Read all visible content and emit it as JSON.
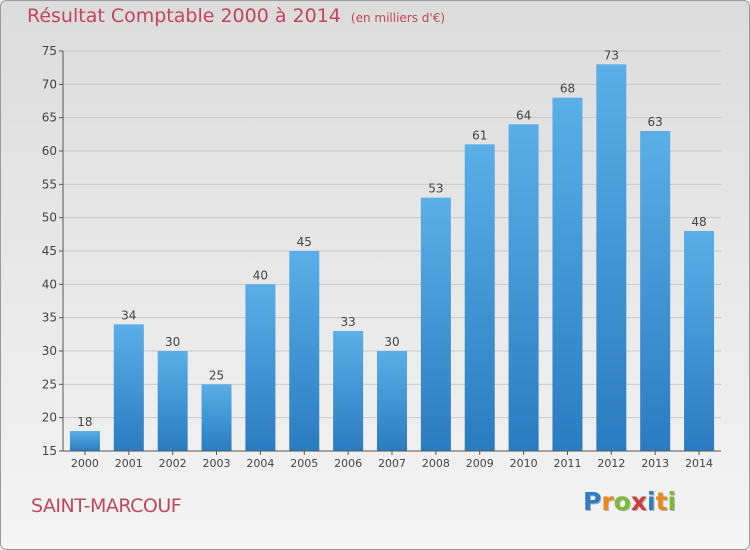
{
  "header": {
    "title": "Résultat Comptable 2000 à 2014",
    "unit": "(en milliers d'€)"
  },
  "footer": {
    "town": "SAINT-MARCOUF",
    "logo_letters": [
      "P",
      "r",
      "o",
      "x",
      "i",
      "t",
      "i"
    ],
    "logo_colors": [
      "#2e7bc6",
      "#e8891b",
      "#7cb93b",
      "#d23b3b",
      "#2e7bc6",
      "#e8891b",
      "#7cb93b"
    ]
  },
  "chart_data": {
    "type": "bar",
    "title": "Résultat Comptable 2000 à 2014",
    "unit_label": "(en milliers d'€)",
    "categories": [
      "2000",
      "2001",
      "2002",
      "2003",
      "2004",
      "2005",
      "2006",
      "2007",
      "2008",
      "2009",
      "2010",
      "2011",
      "2012",
      "2013",
      "2014"
    ],
    "values": [
      18,
      34,
      30,
      25,
      40,
      45,
      33,
      30,
      53,
      61,
      64,
      68,
      73,
      63,
      48
    ],
    "ylim": [
      15,
      75
    ],
    "yticks": [
      15,
      20,
      25,
      30,
      35,
      40,
      45,
      50,
      55,
      60,
      65,
      70,
      75
    ],
    "grid": true,
    "bar_color": "#4aa0e0"
  }
}
